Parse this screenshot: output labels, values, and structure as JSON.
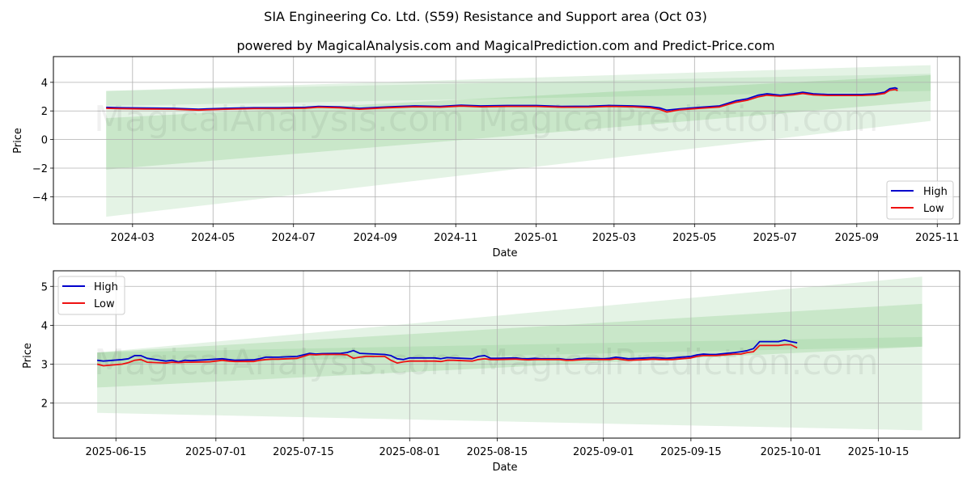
{
  "title": "SIA Engineering Co. Ltd. (S59) Resistance and Support area (Oct 03)",
  "subtitle": "powered by MagicalAnalysis.com and MagicalPrediction.com and Predict-Price.com",
  "watermarks": [
    "MagicalAnalysis.com",
    "MagicalPrediction.com"
  ],
  "colors": {
    "high": "#0000cc",
    "low": "#ee1111",
    "band": "#4caf50"
  },
  "chart_data": [
    {
      "type": "line",
      "name": "long-term",
      "xlabel": "Date",
      "ylabel": "Price",
      "grid": true,
      "legend": {
        "placement": "lower-right",
        "entries": [
          "High",
          "Low"
        ]
      },
      "xlim": [
        "2024-01-01",
        "2025-11-18"
      ],
      "ylim": [
        -5.9,
        5.8
      ],
      "xticks": [
        "2024-03",
        "2024-05",
        "2024-07",
        "2024-09",
        "2024-11",
        "2025-01",
        "2025-03",
        "2025-05",
        "2025-07",
        "2025-09",
        "2025-11"
      ],
      "xtick_dates": [
        "2024-03-01",
        "2024-05-01",
        "2024-07-01",
        "2024-09-01",
        "2024-11-01",
        "2025-01-01",
        "2025-03-01",
        "2025-05-01",
        "2025-07-01",
        "2025-09-01",
        "2025-11-01"
      ],
      "yticks": [
        -4,
        -2,
        0,
        2,
        4
      ],
      "ytick_labels": [
        "−4",
        "−2",
        "0",
        "2",
        "4"
      ],
      "bands": [
        {
          "name": "outer-band",
          "opacity": 0.15,
          "x": [
            "2024-02-10",
            "2025-10-27"
          ],
          "upper": [
            3.4,
            5.2
          ],
          "lower": [
            -5.4,
            1.3
          ]
        },
        {
          "name": "inner-band",
          "opacity": 0.18,
          "x": [
            "2024-02-10",
            "2025-10-27"
          ],
          "upper": [
            1.5,
            4.5
          ],
          "lower": [
            -2.1,
            2.7
          ]
        },
        {
          "name": "top-band",
          "opacity": 0.12,
          "x": [
            "2024-02-10",
            "2025-10-27"
          ],
          "upper": [
            3.4,
            4.6
          ],
          "lower": [
            2.35,
            3.4
          ]
        }
      ],
      "series": [
        {
          "name": "High",
          "x": [
            "2024-02-10",
            "2024-02-20",
            "2024-03-10",
            "2024-04-01",
            "2024-04-20",
            "2024-05-10",
            "2024-06-01",
            "2024-06-20",
            "2024-07-10",
            "2024-07-20",
            "2024-08-05",
            "2024-08-20",
            "2024-09-10",
            "2024-10-01",
            "2024-10-20",
            "2024-11-05",
            "2024-11-20",
            "2024-12-10",
            "2025-01-01",
            "2025-01-20",
            "2025-02-10",
            "2025-02-25",
            "2025-03-15",
            "2025-03-28",
            "2025-04-05",
            "2025-04-10",
            "2025-04-20",
            "2025-05-05",
            "2025-05-20",
            "2025-06-01",
            "2025-06-10",
            "2025-06-18",
            "2025-06-25",
            "2025-07-05",
            "2025-07-15",
            "2025-07-22",
            "2025-07-30",
            "2025-08-10",
            "2025-08-25",
            "2025-09-05",
            "2025-09-15",
            "2025-09-22",
            "2025-09-26",
            "2025-09-30",
            "2025-10-02"
          ],
          "values": [
            2.25,
            2.22,
            2.2,
            2.18,
            2.12,
            2.18,
            2.22,
            2.22,
            2.25,
            2.32,
            2.28,
            2.18,
            2.28,
            2.35,
            2.32,
            2.4,
            2.35,
            2.38,
            2.38,
            2.32,
            2.33,
            2.38,
            2.35,
            2.3,
            2.2,
            2.05,
            2.15,
            2.25,
            2.35,
            2.7,
            2.85,
            3.1,
            3.2,
            3.1,
            3.2,
            3.3,
            3.2,
            3.15,
            3.15,
            3.15,
            3.2,
            3.3,
            3.55,
            3.62,
            3.55
          ]
        },
        {
          "name": "Low",
          "x": [
            "2024-02-10",
            "2024-02-20",
            "2024-03-10",
            "2024-04-01",
            "2024-04-20",
            "2024-05-10",
            "2024-06-01",
            "2024-06-20",
            "2024-07-10",
            "2024-07-20",
            "2024-08-05",
            "2024-08-20",
            "2024-09-10",
            "2024-10-01",
            "2024-10-20",
            "2024-11-05",
            "2024-11-20",
            "2024-12-10",
            "2025-01-01",
            "2025-01-20",
            "2025-02-10",
            "2025-02-25",
            "2025-03-15",
            "2025-03-28",
            "2025-04-05",
            "2025-04-10",
            "2025-04-20",
            "2025-05-05",
            "2025-05-20",
            "2025-06-01",
            "2025-06-10",
            "2025-06-18",
            "2025-06-25",
            "2025-07-05",
            "2025-07-15",
            "2025-07-22",
            "2025-07-30",
            "2025-08-10",
            "2025-08-25",
            "2025-09-05",
            "2025-09-15",
            "2025-09-22",
            "2025-09-26",
            "2025-09-30",
            "2025-10-02"
          ],
          "values": [
            2.18,
            2.16,
            2.14,
            2.12,
            2.06,
            2.12,
            2.16,
            2.16,
            2.19,
            2.26,
            2.22,
            2.12,
            2.22,
            2.29,
            2.26,
            2.34,
            2.29,
            2.32,
            2.32,
            2.26,
            2.27,
            2.32,
            2.29,
            2.22,
            2.1,
            1.92,
            2.08,
            2.18,
            2.28,
            2.6,
            2.75,
            2.98,
            3.1,
            3.03,
            3.12,
            3.22,
            3.12,
            3.08,
            3.08,
            3.08,
            3.12,
            3.22,
            3.45,
            3.5,
            3.42
          ]
        }
      ]
    },
    {
      "type": "line",
      "name": "short-term",
      "xlabel": "Date",
      "ylabel": "Price",
      "grid": true,
      "legend": {
        "placement": "upper-left",
        "entries": [
          "High",
          "Low"
        ]
      },
      "xlim": [
        "2025-06-05",
        "2025-10-28"
      ],
      "ylim": [
        1.1,
        5.4
      ],
      "xticks": [
        "2025-06-15",
        "2025-07-01",
        "2025-07-15",
        "2025-08-01",
        "2025-08-15",
        "2025-09-01",
        "2025-09-15",
        "2025-10-01",
        "2025-10-15"
      ],
      "xtick_dates": [
        "2025-06-15",
        "2025-07-01",
        "2025-07-15",
        "2025-08-01",
        "2025-08-15",
        "2025-09-01",
        "2025-09-15",
        "2025-10-01",
        "2025-10-15"
      ],
      "yticks": [
        2,
        3,
        4,
        5
      ],
      "ytick_labels": [
        "2",
        "3",
        "4",
        "5"
      ],
      "bands": [
        {
          "name": "outer-band",
          "opacity": 0.15,
          "x": [
            "2025-06-12",
            "2025-10-22"
          ],
          "upper": [
            3.3,
            5.25
          ],
          "lower": [
            1.75,
            1.3
          ]
        },
        {
          "name": "inner-band",
          "opacity": 0.18,
          "x": [
            "2025-06-12",
            "2025-10-22"
          ],
          "upper": [
            3.3,
            4.55
          ],
          "lower": [
            2.4,
            3.45
          ]
        },
        {
          "name": "top-band",
          "opacity": 0.12,
          "x": [
            "2025-06-12",
            "2025-10-22"
          ],
          "upper": [
            3.3,
            3.7
          ],
          "lower": [
            3.0,
            3.45
          ]
        }
      ],
      "series": [
        {
          "name": "High",
          "x": [
            "2025-06-12",
            "2025-06-13",
            "2025-06-16",
            "2025-06-17",
            "2025-06-18",
            "2025-06-19",
            "2025-06-20",
            "2025-06-23",
            "2025-06-24",
            "2025-06-25",
            "2025-06-26",
            "2025-06-27",
            "2025-06-30",
            "2025-07-01",
            "2025-07-02",
            "2025-07-03",
            "2025-07-04",
            "2025-07-07",
            "2025-07-08",
            "2025-07-09",
            "2025-07-10",
            "2025-07-11",
            "2025-07-14",
            "2025-07-15",
            "2025-07-16",
            "2025-07-17",
            "2025-07-18",
            "2025-07-21",
            "2025-07-22",
            "2025-07-23",
            "2025-07-24",
            "2025-07-25",
            "2025-07-28",
            "2025-07-29",
            "2025-07-30",
            "2025-07-31",
            "2025-08-01",
            "2025-08-04",
            "2025-08-05",
            "2025-08-06",
            "2025-08-07",
            "2025-08-08",
            "2025-08-11",
            "2025-08-12",
            "2025-08-13",
            "2025-08-14",
            "2025-08-15",
            "2025-08-18",
            "2025-08-19",
            "2025-08-20",
            "2025-08-21",
            "2025-08-22",
            "2025-08-25",
            "2025-08-26",
            "2025-08-27",
            "2025-08-28",
            "2025-08-29",
            "2025-09-01",
            "2025-09-02",
            "2025-09-03",
            "2025-09-04",
            "2025-09-05",
            "2025-09-08",
            "2025-09-09",
            "2025-09-10",
            "2025-09-11",
            "2025-09-12",
            "2025-09-15",
            "2025-09-16",
            "2025-09-17",
            "2025-09-18",
            "2025-09-19",
            "2025-09-22",
            "2025-09-23",
            "2025-09-24",
            "2025-09-25",
            "2025-09-26",
            "2025-09-29",
            "2025-09-30",
            "2025-10-01",
            "2025-10-02"
          ],
          "values": [
            3.1,
            3.08,
            3.12,
            3.14,
            3.22,
            3.22,
            3.15,
            3.08,
            3.1,
            3.06,
            3.1,
            3.09,
            3.12,
            3.13,
            3.14,
            3.12,
            3.1,
            3.11,
            3.14,
            3.18,
            3.18,
            3.18,
            3.2,
            3.24,
            3.28,
            3.26,
            3.27,
            3.28,
            3.3,
            3.35,
            3.28,
            3.27,
            3.25,
            3.22,
            3.14,
            3.12,
            3.16,
            3.16,
            3.16,
            3.14,
            3.17,
            3.16,
            3.14,
            3.2,
            3.22,
            3.15,
            3.15,
            3.16,
            3.14,
            3.14,
            3.15,
            3.14,
            3.14,
            3.12,
            3.12,
            3.14,
            3.15,
            3.14,
            3.15,
            3.18,
            3.16,
            3.14,
            3.16,
            3.17,
            3.16,
            3.15,
            3.16,
            3.2,
            3.24,
            3.26,
            3.25,
            3.25,
            3.3,
            3.32,
            3.35,
            3.4,
            3.58,
            3.58,
            3.62,
            3.58,
            3.55
          ]
        },
        {
          "name": "Low",
          "x": [
            "2025-06-12",
            "2025-06-13",
            "2025-06-16",
            "2025-06-17",
            "2025-06-18",
            "2025-06-19",
            "2025-06-20",
            "2025-06-23",
            "2025-06-24",
            "2025-06-25",
            "2025-06-26",
            "2025-06-27",
            "2025-06-30",
            "2025-07-01",
            "2025-07-02",
            "2025-07-03",
            "2025-07-04",
            "2025-07-07",
            "2025-07-08",
            "2025-07-09",
            "2025-07-10",
            "2025-07-11",
            "2025-07-14",
            "2025-07-15",
            "2025-07-16",
            "2025-07-17",
            "2025-07-18",
            "2025-07-21",
            "2025-07-22",
            "2025-07-23",
            "2025-07-24",
            "2025-07-25",
            "2025-07-28",
            "2025-07-29",
            "2025-07-30",
            "2025-07-31",
            "2025-08-01",
            "2025-08-04",
            "2025-08-05",
            "2025-08-06",
            "2025-08-07",
            "2025-08-08",
            "2025-08-11",
            "2025-08-12",
            "2025-08-13",
            "2025-08-14",
            "2025-08-15",
            "2025-08-18",
            "2025-08-19",
            "2025-08-20",
            "2025-08-21",
            "2025-08-22",
            "2025-08-25",
            "2025-08-26",
            "2025-08-27",
            "2025-08-28",
            "2025-08-29",
            "2025-09-01",
            "2025-09-02",
            "2025-09-03",
            "2025-09-04",
            "2025-09-05",
            "2025-09-08",
            "2025-09-09",
            "2025-09-10",
            "2025-09-11",
            "2025-09-12",
            "2025-09-15",
            "2025-09-16",
            "2025-09-17",
            "2025-09-18",
            "2025-09-19",
            "2025-09-22",
            "2025-09-23",
            "2025-09-24",
            "2025-09-25",
            "2025-09-26",
            "2025-09-29",
            "2025-09-30",
            "2025-10-01",
            "2025-10-02"
          ],
          "values": [
            3.0,
            2.96,
            3.0,
            3.04,
            3.1,
            3.12,
            3.05,
            3.03,
            3.05,
            3.04,
            3.05,
            3.05,
            3.06,
            3.08,
            3.1,
            3.08,
            3.07,
            3.07,
            3.1,
            3.12,
            3.13,
            3.13,
            3.15,
            3.2,
            3.25,
            3.24,
            3.25,
            3.25,
            3.24,
            3.15,
            3.18,
            3.2,
            3.2,
            3.1,
            3.03,
            3.06,
            3.08,
            3.08,
            3.08,
            3.07,
            3.1,
            3.1,
            3.08,
            3.12,
            3.14,
            3.12,
            3.12,
            3.13,
            3.12,
            3.11,
            3.12,
            3.12,
            3.12,
            3.1,
            3.1,
            3.11,
            3.12,
            3.12,
            3.12,
            3.14,
            3.12,
            3.1,
            3.12,
            3.13,
            3.12,
            3.12,
            3.12,
            3.16,
            3.2,
            3.22,
            3.22,
            3.22,
            3.26,
            3.26,
            3.3,
            3.32,
            3.48,
            3.48,
            3.5,
            3.5,
            3.42
          ]
        }
      ]
    }
  ]
}
